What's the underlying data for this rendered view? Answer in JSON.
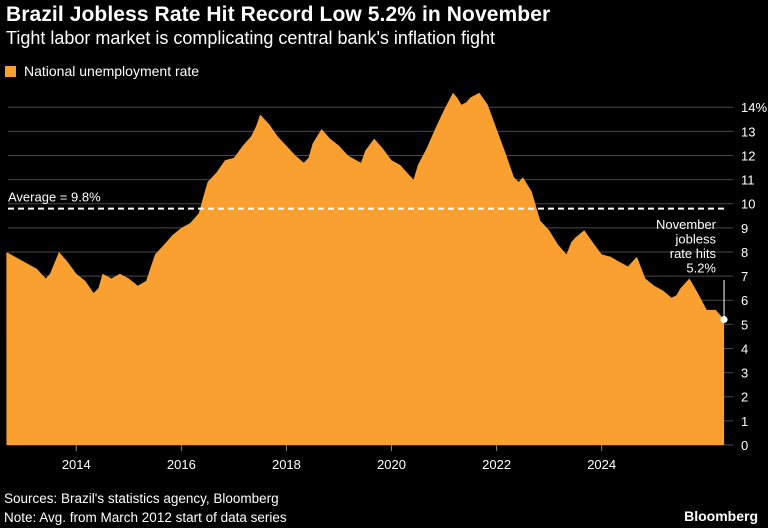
{
  "header": {
    "title": "Brazil Jobless Rate Hit Record Low 5.2% in November",
    "subtitle": "Tight labor market is complicating central bank's inflation fight"
  },
  "legend": {
    "label": "National unemployment rate",
    "color": "#f9a030"
  },
  "footer": {
    "sources": "Sources: Brazil's statistics agency, Bloomberg",
    "note": "Note: Avg. from March 2012 start of data series",
    "brand": "Bloomberg"
  },
  "chart_data": {
    "type": "area",
    "title": "Brazil Jobless Rate Hit Record Low 5.2% in November",
    "subtitle": "Tight labor market is complicating central bank's inflation fight",
    "xlabel": "",
    "ylabel": "",
    "xlim": [
      2012.2,
      2026.0
    ],
    "ylim": [
      0,
      14.3
    ],
    "y_unit": "%",
    "x_ticks": [
      2014,
      2016,
      2018,
      2020,
      2022,
      2024
    ],
    "y_ticks": [
      "0",
      "1",
      "2",
      "3",
      "4",
      "5",
      "6",
      "7",
      "8",
      "9",
      "10",
      "11",
      "12",
      "13",
      "14%"
    ],
    "grid": true,
    "legend_position": "top-left",
    "series": [
      {
        "name": "National unemployment rate",
        "color": "#f9a030",
        "x": [
          2012.17,
          2012.5,
          2012.75,
          2012.92,
          2013.0,
          2013.17,
          2013.33,
          2013.5,
          2013.67,
          2013.83,
          2013.92,
          2014.0,
          2014.17,
          2014.33,
          2014.5,
          2014.67,
          2014.83,
          2014.92,
          2015.0,
          2015.17,
          2015.33,
          2015.5,
          2015.67,
          2015.83,
          2015.92,
          2016.0,
          2016.17,
          2016.33,
          2016.5,
          2016.67,
          2016.83,
          2016.92,
          2017.0,
          2017.17,
          2017.33,
          2017.5,
          2017.67,
          2017.83,
          2017.92,
          2018.0,
          2018.17,
          2018.33,
          2018.5,
          2018.67,
          2018.83,
          2018.92,
          2019.0,
          2019.17,
          2019.33,
          2019.5,
          2019.67,
          2019.83,
          2019.92,
          2020.0,
          2020.17,
          2020.33,
          2020.5,
          2020.67,
          2020.75,
          2020.83,
          2020.92,
          2021.0,
          2021.17,
          2021.33,
          2021.5,
          2021.67,
          2021.83,
          2021.92,
          2022.0,
          2022.17,
          2022.33,
          2022.5,
          2022.67,
          2022.83,
          2022.92,
          2023.0,
          2023.17,
          2023.33,
          2023.5,
          2023.67,
          2023.83,
          2023.92,
          2024.0,
          2024.17,
          2024.33,
          2024.5,
          2024.67,
          2024.83,
          2024.92,
          2025.0,
          2025.17,
          2025.33,
          2025.5,
          2025.67,
          2025.83
        ],
        "y": [
          8.0,
          7.6,
          7.3,
          6.9,
          7.1,
          8.0,
          7.6,
          7.1,
          6.8,
          6.3,
          6.5,
          7.1,
          6.9,
          7.1,
          6.9,
          6.6,
          6.8,
          7.4,
          7.9,
          8.3,
          8.7,
          9.0,
          9.2,
          9.6,
          10.3,
          10.9,
          11.3,
          11.8,
          11.9,
          12.4,
          12.8,
          13.2,
          13.7,
          13.3,
          12.8,
          12.4,
          12.0,
          11.7,
          11.9,
          12.5,
          13.1,
          12.7,
          12.4,
          12.0,
          11.8,
          11.7,
          12.2,
          12.7,
          12.3,
          11.8,
          11.6,
          11.2,
          11.0,
          11.6,
          12.3,
          13.1,
          13.9,
          14.6,
          14.4,
          14.1,
          14.2,
          14.4,
          14.6,
          14.1,
          13.1,
          12.1,
          11.1,
          10.9,
          11.1,
          10.5,
          9.3,
          8.9,
          8.3,
          7.9,
          8.4,
          8.6,
          8.9,
          8.4,
          7.9,
          7.8,
          7.6,
          7.5,
          7.4,
          7.8,
          6.9,
          6.6,
          6.4,
          6.1,
          6.2,
          6.5,
          6.9,
          6.3,
          5.6,
          5.6,
          5.2
        ]
      }
    ],
    "reference_line": {
      "value": 9.8,
      "label": "Average = 9.8%"
    },
    "annotation": {
      "lines": [
        "November",
        "jobless",
        "rate hits",
        "5.2%"
      ]
    }
  }
}
